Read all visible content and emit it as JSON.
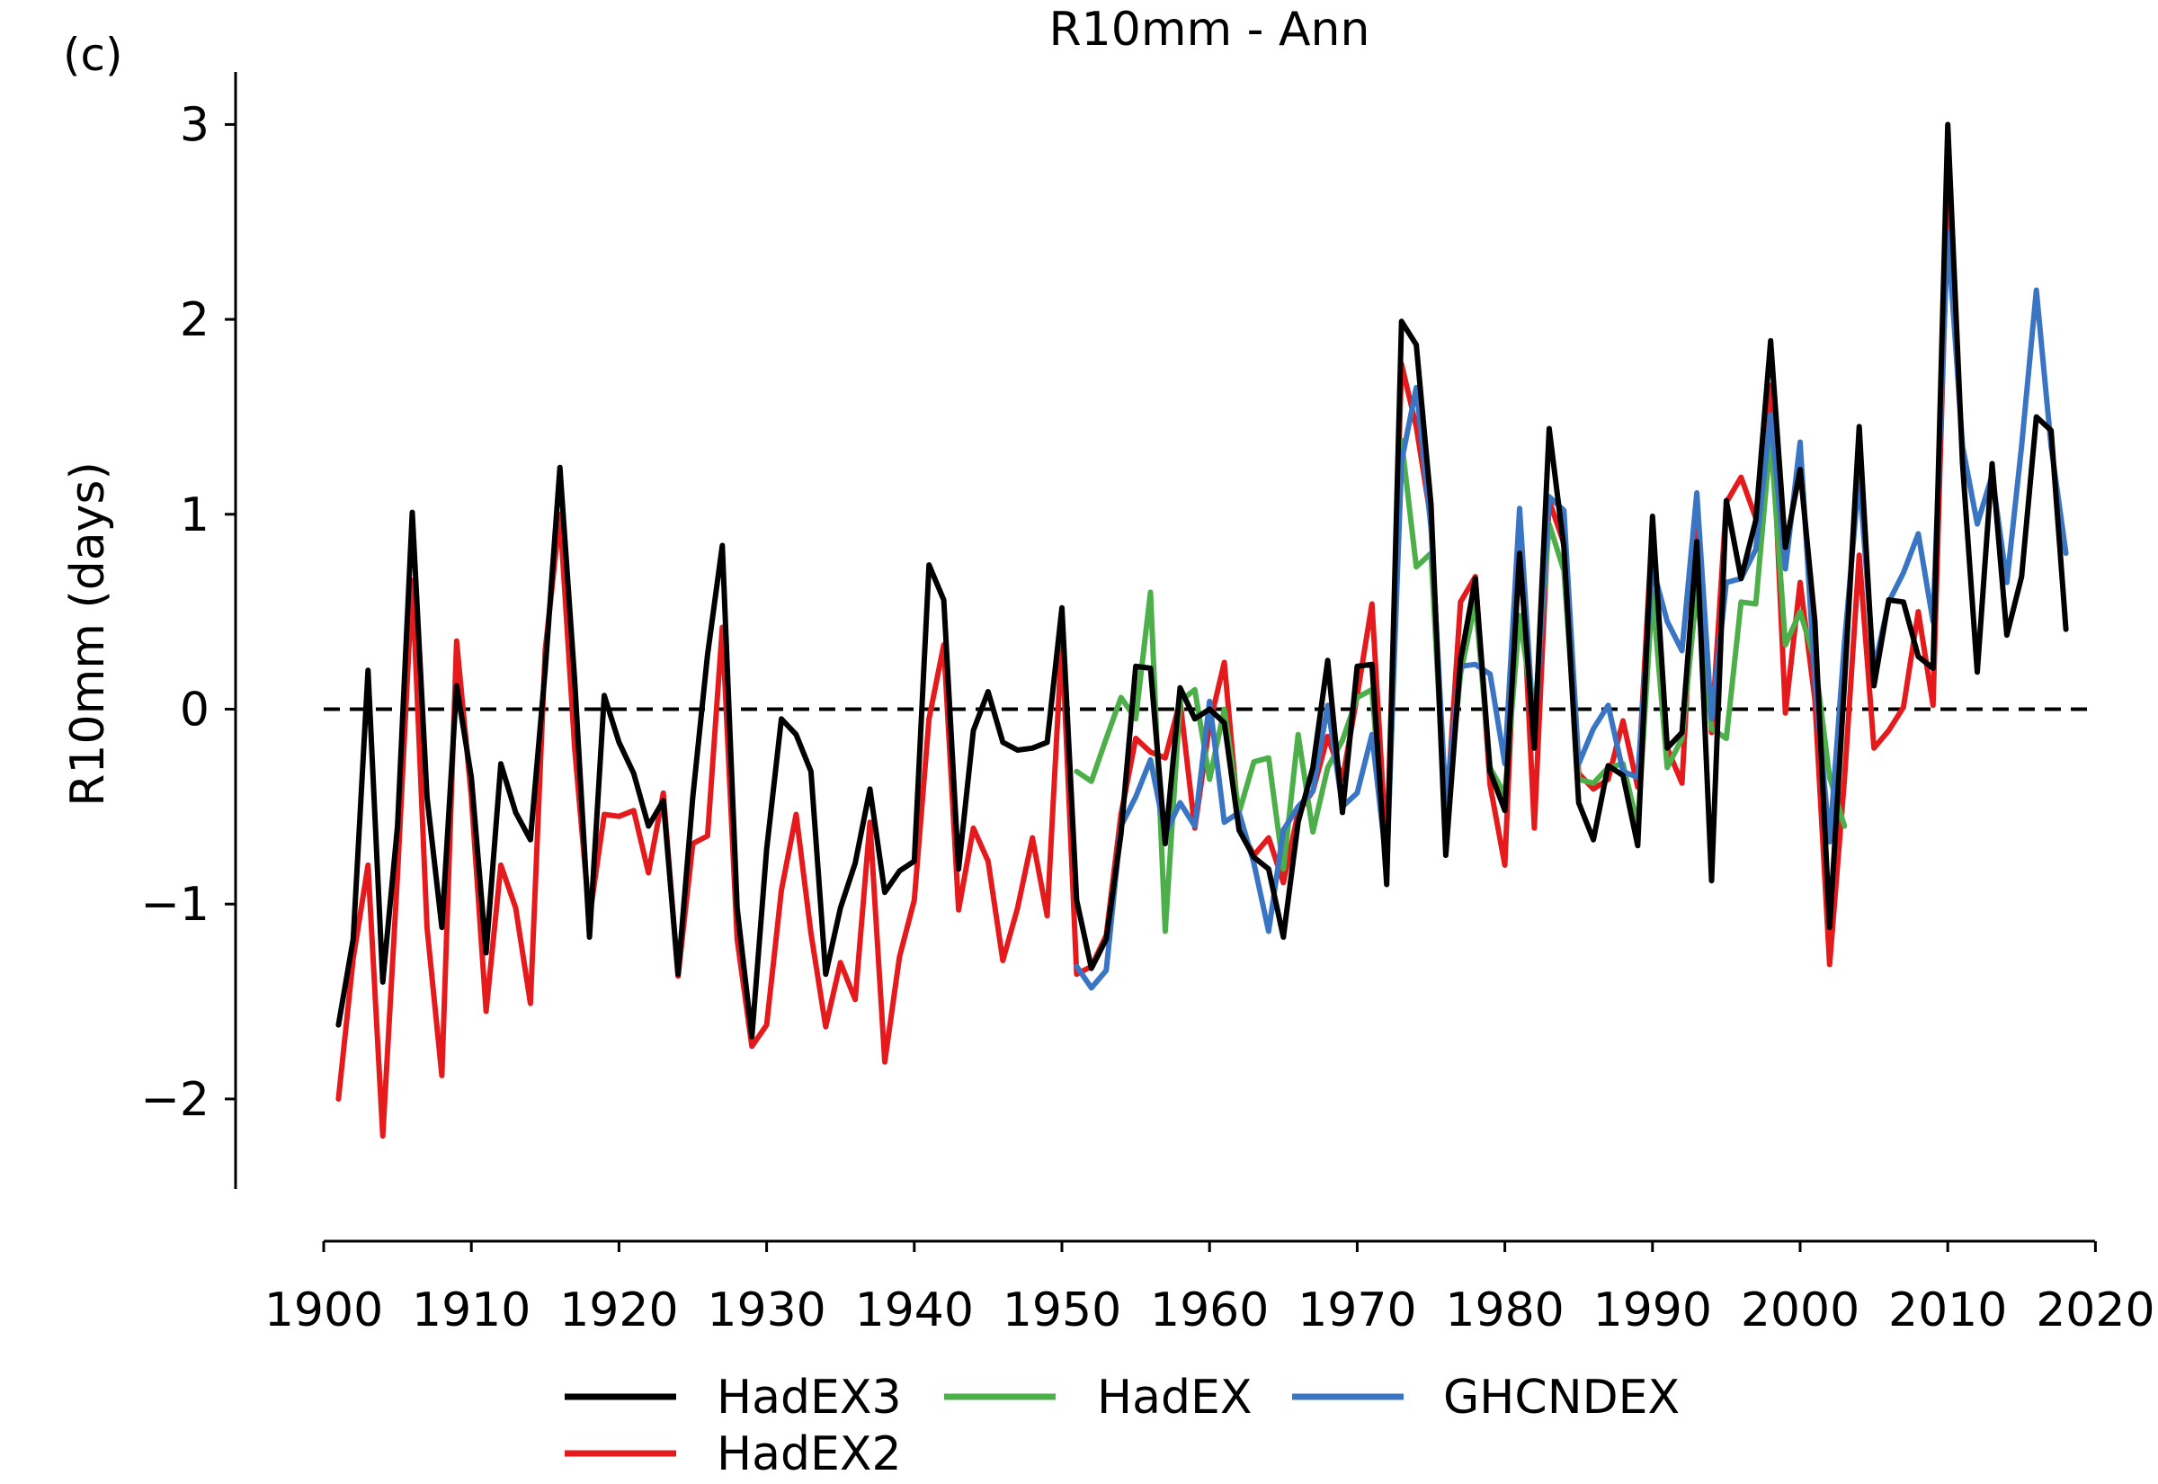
{
  "panel_label": "(c)",
  "chart_data": {
    "type": "line",
    "title": "R10mm - Ann",
    "xlabel": "",
    "ylabel": "R10mm (days)",
    "xlim": [
      1900,
      2020
    ],
    "ylim": [
      -2.5,
      3.25
    ],
    "xticks": [
      1900,
      1910,
      1920,
      1930,
      1940,
      1950,
      1960,
      1970,
      1980,
      1990,
      2000,
      2010,
      2020
    ],
    "yticks": [
      -2,
      -1,
      0,
      1,
      2,
      3
    ],
    "ytick_labels": [
      "−2",
      "−1",
      "0",
      "1",
      "2",
      "3"
    ],
    "reference_line": 0,
    "grid": false,
    "legend": "bottom-center",
    "series": [
      {
        "name": "HadEX3",
        "color": "#000000",
        "x": [
          1901,
          1902,
          1903,
          1904,
          1905,
          1906,
          1907,
          1908,
          1909,
          1910,
          1911,
          1912,
          1913,
          1914,
          1915,
          1916,
          1917,
          1918,
          1919,
          1920,
          1921,
          1922,
          1923,
          1924,
          1925,
          1926,
          1927,
          1928,
          1929,
          1930,
          1931,
          1932,
          1933,
          1934,
          1935,
          1936,
          1937,
          1938,
          1939,
          1940,
          1941,
          1942,
          1943,
          1944,
          1945,
          1946,
          1947,
          1948,
          1949,
          1950,
          1951,
          1952,
          1953,
          1954,
          1955,
          1956,
          1957,
          1958,
          1959,
          1960,
          1961,
          1962,
          1963,
          1964,
          1965,
          1966,
          1967,
          1968,
          1969,
          1970,
          1971,
          1972,
          1973,
          1974,
          1975,
          1976,
          1977,
          1978,
          1979,
          1980,
          1981,
          1982,
          1983,
          1984,
          1985,
          1986,
          1987,
          1988,
          1989,
          1990,
          1991,
          1992,
          1993,
          1994,
          1995,
          1996,
          1997,
          1998,
          1999,
          2000,
          2001,
          2002,
          2003,
          2004,
          2005,
          2006,
          2007,
          2008,
          2009,
          2010,
          2011,
          2012,
          2013,
          2014,
          2015,
          2016,
          2017,
          2018
        ],
        "y": [
          -1.62,
          -1.18,
          0.2,
          -1.4,
          -0.6,
          1.01,
          -0.45,
          -1.12,
          0.12,
          -0.35,
          -1.25,
          -0.28,
          -0.53,
          -0.67,
          0.2,
          1.24,
          0.15,
          -1.17,
          0.07,
          -0.17,
          -0.33,
          -0.6,
          -0.47,
          -1.36,
          -0.45,
          0.28,
          0.84,
          -1.02,
          -1.68,
          -0.72,
          -0.05,
          -0.13,
          -0.32,
          -1.36,
          -1.02,
          -0.79,
          -0.41,
          -0.94,
          -0.83,
          -0.78,
          0.74,
          0.56,
          -0.82,
          -0.11,
          0.09,
          -0.17,
          -0.21,
          -0.2,
          -0.17,
          0.52,
          -0.98,
          -1.33,
          -1.18,
          -0.64,
          0.22,
          0.21,
          -0.69,
          0.11,
          -0.05,
          0.0,
          -0.07,
          -0.62,
          -0.76,
          -0.82,
          -1.17,
          -0.58,
          -0.3,
          0.25,
          -0.53,
          0.22,
          0.23,
          -0.9,
          1.99,
          1.87,
          1.05,
          -0.75,
          0.25,
          0.67,
          -0.32,
          -0.52,
          0.8,
          -0.2,
          1.44,
          0.83,
          -0.48,
          -0.67,
          -0.29,
          -0.34,
          -0.7,
          0.99,
          -0.2,
          -0.12,
          0.86,
          -0.88,
          1.07,
          0.67,
          0.97,
          1.89,
          0.83,
          1.23,
          0.45,
          -1.12,
          0.13,
          1.45,
          0.12,
          0.56,
          0.55,
          0.27,
          0.21,
          3.0,
          1.26,
          0.19,
          1.26,
          0.38,
          0.68,
          1.5,
          1.43,
          0.41
        ]
      },
      {
        "name": "HadEX2",
        "color": "#e41a1c",
        "x": [
          1901,
          1902,
          1903,
          1904,
          1905,
          1906,
          1907,
          1908,
          1909,
          1910,
          1911,
          1912,
          1913,
          1914,
          1915,
          1916,
          1917,
          1918,
          1919,
          1920,
          1921,
          1922,
          1923,
          1924,
          1925,
          1926,
          1927,
          1928,
          1929,
          1930,
          1931,
          1932,
          1933,
          1934,
          1935,
          1936,
          1937,
          1938,
          1939,
          1940,
          1941,
          1942,
          1943,
          1944,
          1945,
          1946,
          1947,
          1948,
          1949,
          1950,
          1951,
          1952,
          1953,
          1954,
          1955,
          1956,
          1957,
          1958,
          1959,
          1960,
          1961,
          1962,
          1963,
          1964,
          1965,
          1966,
          1967,
          1968,
          1969,
          1970,
          1971,
          1972,
          1973,
          1974,
          1975,
          1976,
          1977,
          1978,
          1979,
          1980,
          1981,
          1982,
          1983,
          1984,
          1985,
          1986,
          1987,
          1988,
          1989,
          1990,
          1991,
          1992,
          1993,
          1994,
          1995,
          1996,
          1997,
          1998,
          1999,
          2000,
          2001,
          2002,
          2003,
          2004,
          2005,
          2006,
          2007,
          2008,
          2009,
          2010
        ],
        "y": [
          -2.0,
          -1.28,
          -0.8,
          -2.19,
          -0.85,
          0.66,
          -1.12,
          -1.88,
          0.35,
          -0.45,
          -1.55,
          -0.8,
          -1.02,
          -1.51,
          0.3,
          1.0,
          -0.2,
          -1.07,
          -0.54,
          -0.55,
          -0.52,
          -0.84,
          -0.43,
          -1.37,
          -0.69,
          -0.65,
          0.42,
          -1.18,
          -1.73,
          -1.62,
          -0.93,
          -0.54,
          -1.15,
          -1.63,
          -1.3,
          -1.49,
          -0.58,
          -1.81,
          -1.27,
          -0.98,
          -0.05,
          0.33,
          -1.03,
          -0.61,
          -0.78,
          -1.29,
          -1.02,
          -0.66,
          -1.06,
          0.36,
          -1.36,
          -1.32,
          -1.16,
          -0.54,
          -0.15,
          -0.22,
          -0.25,
          0.04,
          -0.61,
          -0.08,
          0.24,
          -0.6,
          -0.75,
          -0.66,
          -0.89,
          -0.53,
          -0.42,
          -0.14,
          -0.36,
          0.07,
          0.54,
          -0.75,
          1.77,
          1.45,
          0.97,
          -0.6,
          0.55,
          0.68,
          -0.39,
          -0.8,
          0.95,
          -0.61,
          1.07,
          0.85,
          -0.33,
          -0.41,
          -0.36,
          -0.06,
          -0.4,
          0.95,
          -0.2,
          -0.38,
          1.02,
          -0.12,
          1.06,
          1.19,
          0.98,
          1.66,
          -0.02,
          0.65,
          0.05,
          -1.31,
          -0.36,
          0.79,
          -0.2,
          -0.11,
          0.01,
          0.5,
          0.02,
          2.6
        ]
      },
      {
        "name": "HadEX",
        "color": "#4daf4a",
        "x": [
          1951,
          1952,
          1953,
          1954,
          1955,
          1956,
          1957,
          1958,
          1959,
          1960,
          1961,
          1962,
          1963,
          1964,
          1965,
          1966,
          1967,
          1968,
          1969,
          1970,
          1971,
          1972,
          1973,
          1974,
          1975,
          1976,
          1977,
          1978,
          1979,
          1980,
          1981,
          1982,
          1983,
          1984,
          1985,
          1986,
          1987,
          1988,
          1989,
          1990,
          1991,
          1992,
          1993,
          1994,
          1995,
          1996,
          1997,
          1998,
          1999,
          2000,
          2001,
          2002,
          2003
        ],
        "y": [
          -0.32,
          -0.37,
          -0.15,
          0.06,
          -0.05,
          0.6,
          -1.14,
          0.04,
          0.1,
          -0.36,
          0.0,
          -0.53,
          -0.27,
          -0.25,
          -0.82,
          -0.13,
          -0.63,
          -0.3,
          -0.16,
          0.06,
          0.1,
          -0.85,
          1.38,
          0.73,
          0.8,
          -0.6,
          0.18,
          0.55,
          -0.3,
          -0.44,
          0.48,
          -0.05,
          0.95,
          0.71,
          -0.36,
          -0.38,
          -0.3,
          -0.28,
          -0.6,
          0.6,
          -0.3,
          -0.15,
          0.61,
          -0.1,
          -0.15,
          0.55,
          0.54,
          1.4,
          0.33,
          0.5,
          0.25,
          -0.35,
          -0.6
        ]
      },
      {
        "name": "GHCNDEX",
        "color": "#3a75c4",
        "x": [
          1951,
          1952,
          1953,
          1954,
          1955,
          1956,
          1957,
          1958,
          1959,
          1960,
          1961,
          1962,
          1963,
          1964,
          1965,
          1966,
          1967,
          1968,
          1969,
          1970,
          1971,
          1972,
          1973,
          1974,
          1975,
          1976,
          1977,
          1978,
          1979,
          1980,
          1981,
          1982,
          1983,
          1984,
          1985,
          1986,
          1987,
          1988,
          1989,
          1990,
          1991,
          1992,
          1993,
          1994,
          1995,
          1996,
          1997,
          1998,
          1999,
          2000,
          2001,
          2002,
          2003,
          2004,
          2005,
          2006,
          2007,
          2008,
          2009,
          2010,
          2011,
          2012,
          2013,
          2014,
          2015,
          2016,
          2017,
          2018
        ],
        "y": [
          -1.32,
          -1.43,
          -1.34,
          -0.6,
          -0.45,
          -0.26,
          -0.64,
          -0.48,
          -0.6,
          0.04,
          -0.58,
          -0.53,
          -0.79,
          -1.14,
          -0.62,
          -0.5,
          -0.42,
          0.02,
          -0.5,
          -0.43,
          -0.13,
          -0.8,
          1.27,
          1.65,
          0.93,
          -0.47,
          0.22,
          0.23,
          0.18,
          -0.28,
          1.03,
          -0.16,
          1.09,
          1.02,
          -0.28,
          -0.1,
          0.02,
          -0.32,
          -0.35,
          0.73,
          0.45,
          0.3,
          1.11,
          -0.05,
          0.65,
          0.67,
          0.82,
          1.51,
          0.72,
          1.37,
          0.15,
          -0.68,
          0.34,
          1.2,
          0.2,
          0.55,
          0.7,
          0.9,
          0.45,
          2.45,
          1.35,
          0.95,
          1.2,
          0.65,
          1.35,
          2.15,
          1.35,
          0.8
        ]
      }
    ]
  }
}
